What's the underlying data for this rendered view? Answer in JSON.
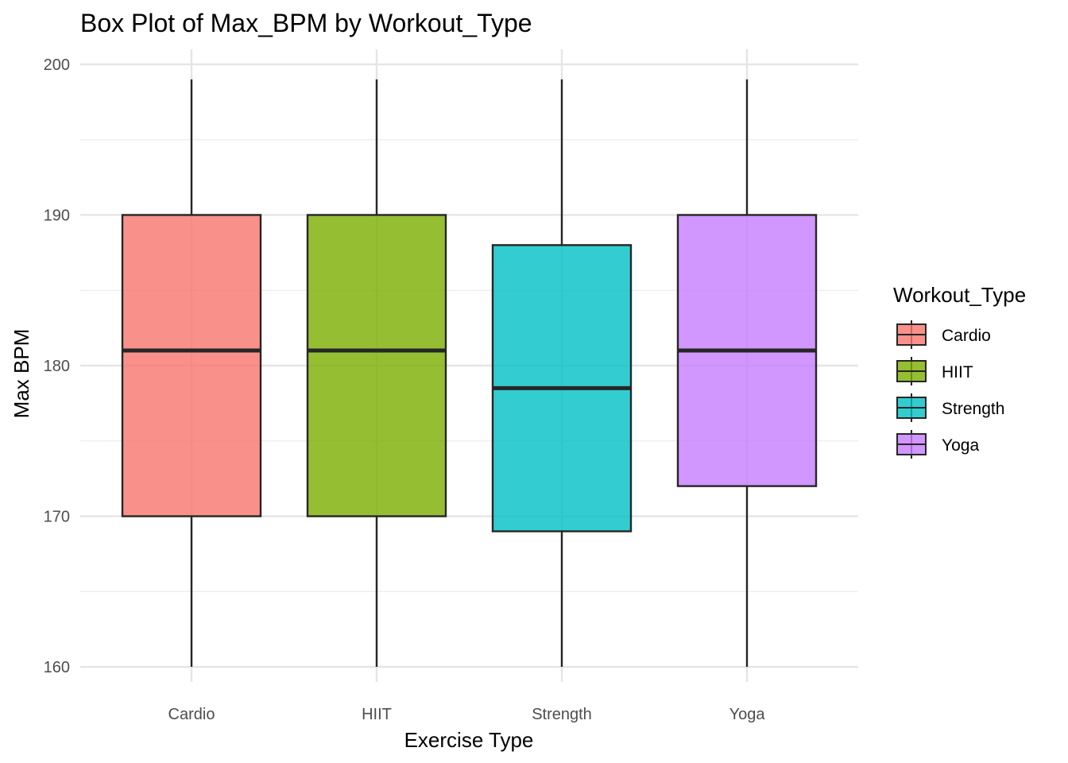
{
  "chart_data": {
    "type": "box",
    "title": "Box Plot of Max_BPM by Workout_Type",
    "xlabel": "Exercise Type",
    "ylabel": "Max BPM",
    "ylim": [
      159,
      201
    ],
    "yticks": [
      160,
      170,
      180,
      190,
      200
    ],
    "grid": true,
    "legend": {
      "title": "Workout_Type",
      "position": "right"
    },
    "categories": [
      "Cardio",
      "HIIT",
      "Strength",
      "Yoga"
    ],
    "series": [
      {
        "name": "Cardio",
        "color": "#F8766D",
        "min": 160,
        "q1": 170,
        "median": 181,
        "q3": 190,
        "max": 199
      },
      {
        "name": "HIIT",
        "color": "#7CAE00",
        "min": 160,
        "q1": 170,
        "median": 181,
        "q3": 190,
        "max": 199
      },
      {
        "name": "Strength",
        "color": "#00BFC4",
        "min": 160,
        "q1": 169,
        "median": 178.5,
        "q3": 188,
        "max": 199
      },
      {
        "name": "Yoga",
        "color": "#C77CFF",
        "min": 160,
        "q1": 172,
        "median": 181,
        "q3": 190,
        "max": 199
      }
    ]
  }
}
